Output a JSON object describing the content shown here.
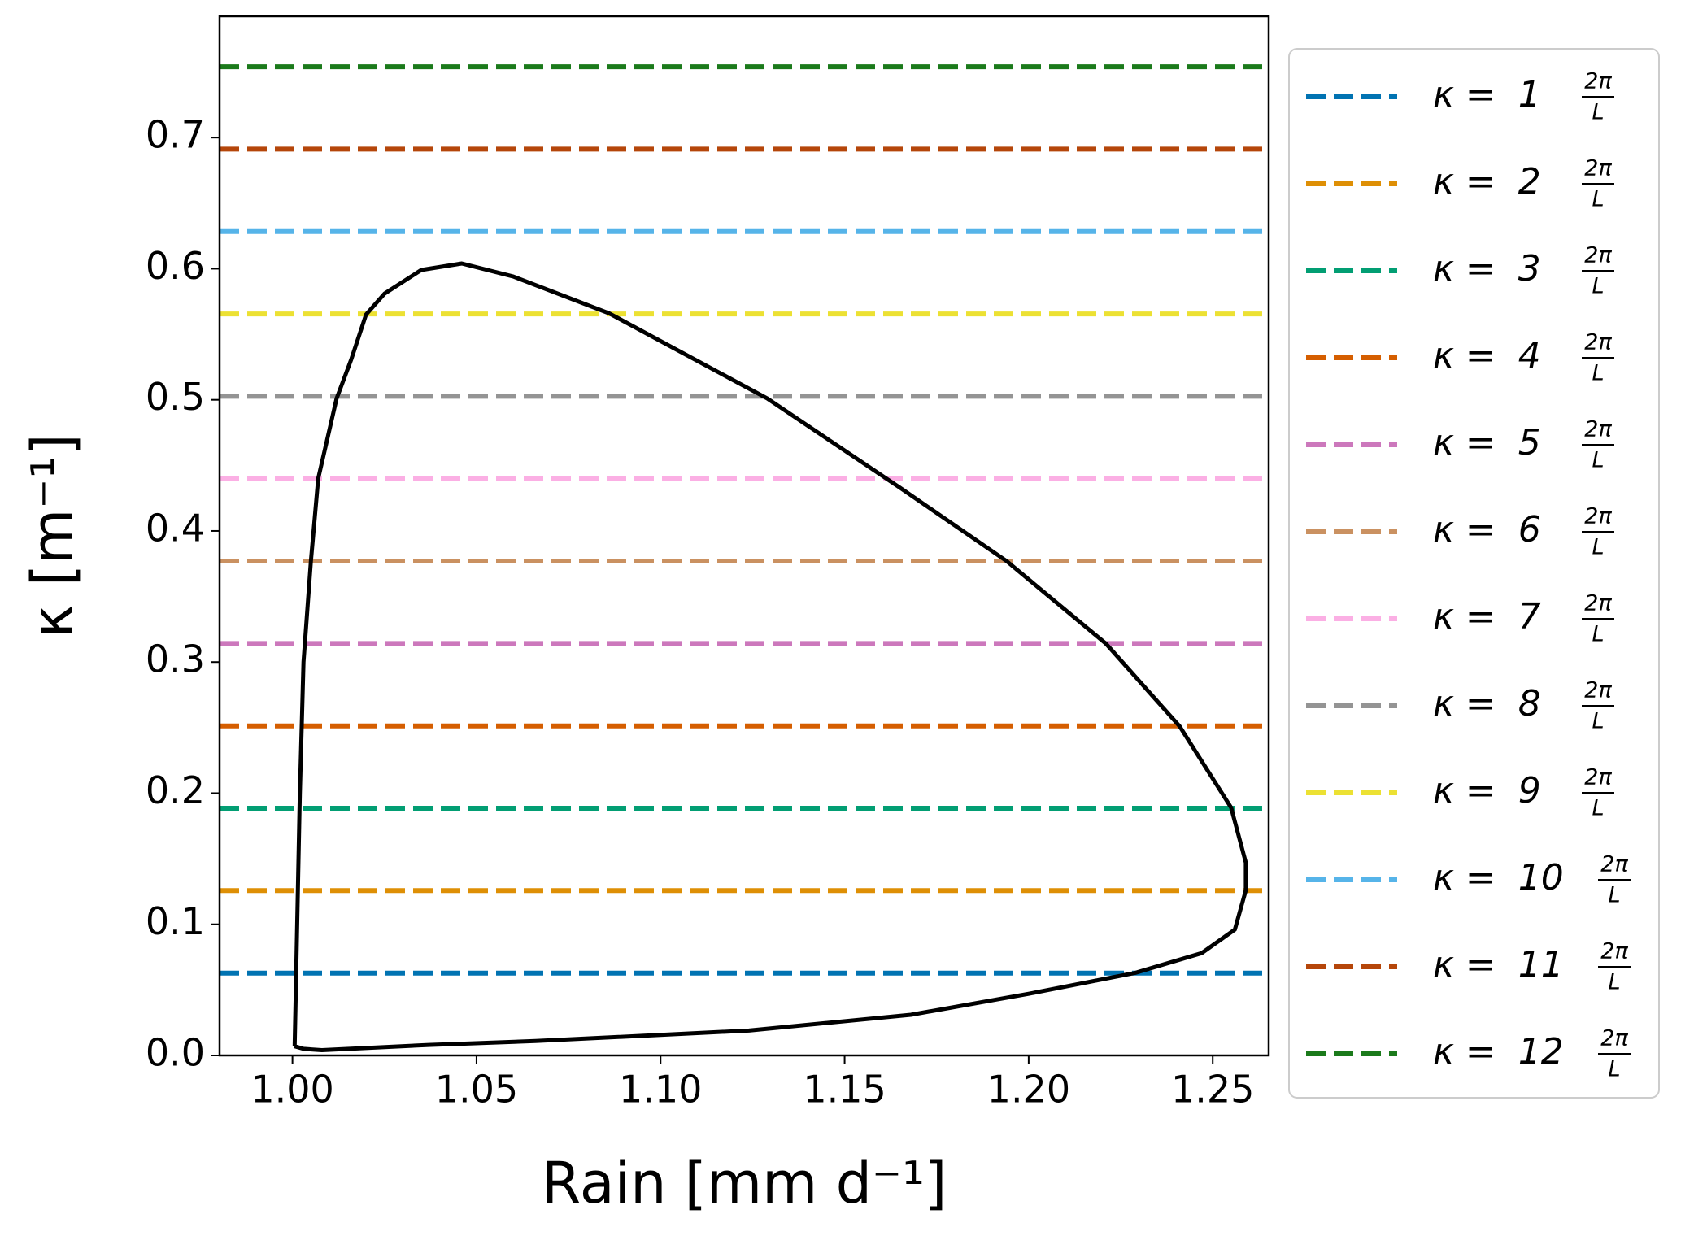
{
  "chart_data": {
    "type": "line",
    "xlabel": "Rain [mm d⁻¹]",
    "ylabel": "κ [m⁻¹]",
    "xlim": [
      0.9802,
      1.2652
    ],
    "ylim": [
      0,
      0.7925
    ],
    "xticks": [
      {
        "value": 1.0,
        "label": "1.00"
      },
      {
        "value": 1.05,
        "label": "1.05"
      },
      {
        "value": 1.1,
        "label": "1.10"
      },
      {
        "value": 1.15,
        "label": "1.15"
      },
      {
        "value": 1.2,
        "label": "1.20"
      },
      {
        "value": 1.25,
        "label": "1.25"
      }
    ],
    "yticks": [
      {
        "value": 0,
        "label": "0.0"
      },
      0.1,
      0.2,
      0.3,
      0.4,
      0.5,
      0.6,
      0.7
    ],
    "legend": "right outside",
    "legend_fraction": {
      "numerator": "2π",
      "denominator": "L"
    },
    "series": [
      {
        "name": "κ =  1",
        "color": "#0173b2",
        "value": 0.0628
      },
      {
        "name": "κ =  2",
        "color": "#de8f05",
        "value": 0.1257
      },
      {
        "name": "κ =  3",
        "color": "#029e73",
        "value": 0.1885
      },
      {
        "name": "κ =  4",
        "color": "#d55e00",
        "value": 0.2513
      },
      {
        "name": "κ =  5",
        "color": "#cc78bc",
        "value": 0.3142
      },
      {
        "name": "κ =  6",
        "color": "#ca9161",
        "value": 0.377
      },
      {
        "name": "κ =  7",
        "color": "#fbafe4",
        "value": 0.4398
      },
      {
        "name": "κ =  8",
        "color": "#949494",
        "value": 0.5027
      },
      {
        "name": "κ =  9",
        "color": "#ece133",
        "value": 0.5655
      },
      {
        "name": "κ =  10",
        "color": "#56b4e9",
        "value": 0.6283
      },
      {
        "name": "κ =  11",
        "color": "#b5460a",
        "value": 0.6912
      },
      {
        "name": "κ =  12",
        "color": "#1b7a1b",
        "value": 0.754
      }
    ],
    "curve": {
      "color": "#000000",
      "x": [
        1.0006,
        1.001,
        1.002,
        1.003,
        1.005,
        1.007,
        1.012,
        1.016,
        1.02,
        1.025,
        1.035,
        1.046,
        1.06,
        1.086,
        1.129,
        1.165,
        1.194,
        1.221,
        1.241,
        1.255,
        1.259,
        1.259,
        1.256,
        1.247,
        1.229,
        1.2,
        1.168,
        1.124,
        1.066,
        1.037,
        1.008,
        1.003,
        1.0006
      ],
      "y": [
        0.007,
        0.06,
        0.2,
        0.3,
        0.377,
        0.44,
        0.501,
        0.531,
        0.565,
        0.581,
        0.599,
        0.604,
        0.594,
        0.566,
        0.501,
        0.433,
        0.377,
        0.314,
        0.251,
        0.189,
        0.147,
        0.126,
        0.096,
        0.078,
        0.063,
        0.047,
        0.031,
        0.019,
        0.011,
        0.008,
        0.004,
        0.005,
        0.007
      ]
    }
  }
}
